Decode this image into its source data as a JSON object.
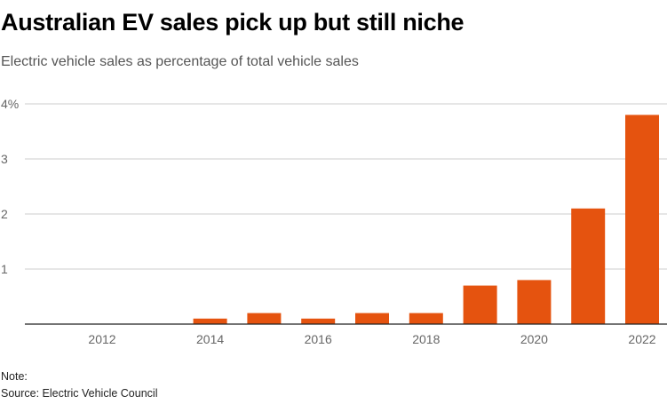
{
  "header": {
    "title": "Australian EV sales pick up but still niche",
    "subtitle": "Electric vehicle sales as percentage of total vehicle sales"
  },
  "footer": {
    "note": "Note:",
    "source": "Source: Electric Vehicle Council"
  },
  "chart_data": {
    "type": "bar",
    "categories": [
      "2012",
      "2013",
      "2014",
      "2015",
      "2016",
      "2017",
      "2018",
      "2019",
      "2020",
      "2021",
      "2022"
    ],
    "values": [
      0,
      0,
      0.1,
      0.2,
      0.1,
      0.2,
      0.2,
      0.7,
      0.8,
      2.1,
      3.8
    ],
    "x_tick_labels": [
      "2012",
      "2014",
      "2016",
      "2018",
      "2020",
      "2022"
    ],
    "y_ticks": [
      {
        "value": 1,
        "label": "1"
      },
      {
        "value": 2,
        "label": "2"
      },
      {
        "value": 3,
        "label": "3"
      },
      {
        "value": 4,
        "label": "4%"
      }
    ],
    "ylim": [
      0,
      4
    ],
    "grid": true,
    "bar_color": "#e5530f",
    "grid_color": "#cccccc",
    "axis_color": "#222222",
    "tick_label_color": "#666666"
  }
}
